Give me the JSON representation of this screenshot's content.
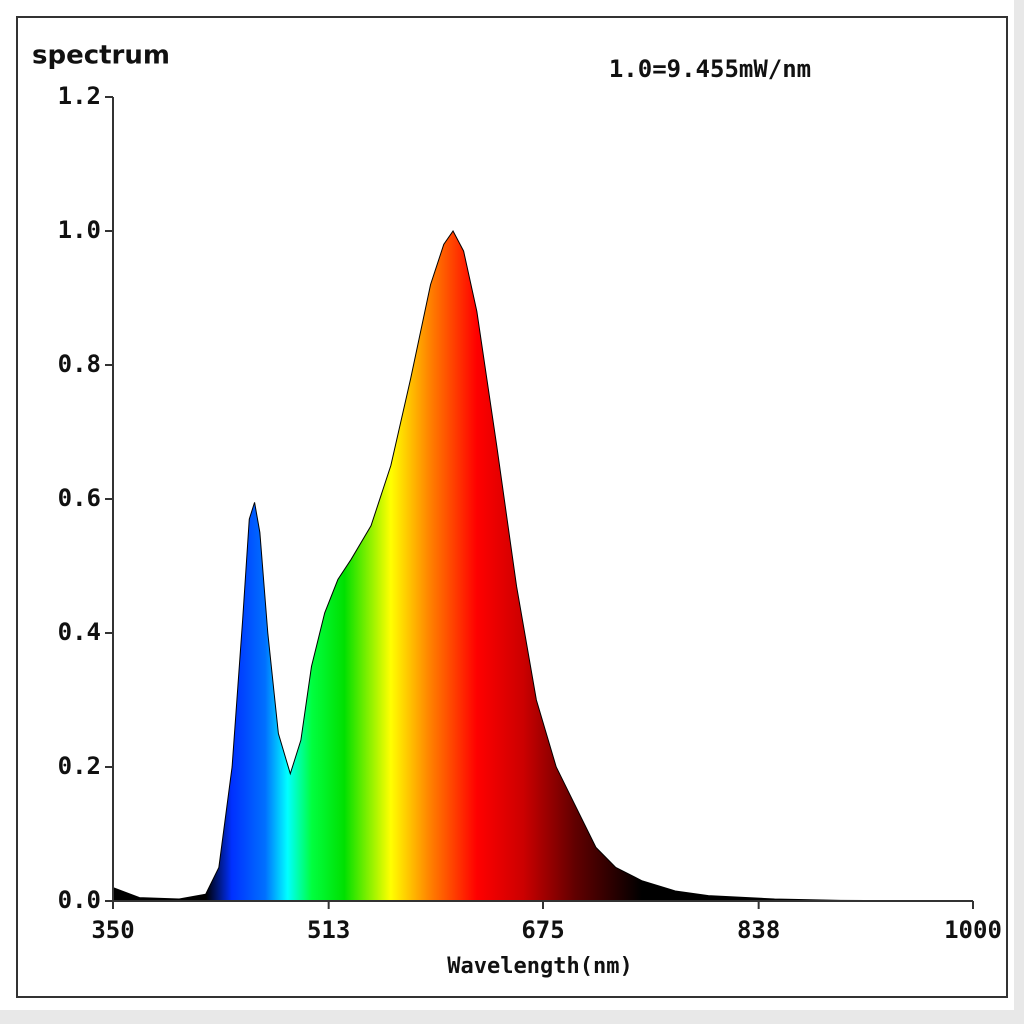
{
  "chart_data": {
    "type": "area",
    "y_label": "spectrum",
    "annotation": "1.0=9.455mW/nm",
    "x_label": "Wavelength(nm)",
    "x": [
      350,
      370,
      400,
      420,
      430,
      440,
      448,
      453,
      457,
      461,
      467,
      475,
      484,
      492,
      500,
      510,
      520,
      530,
      545,
      560,
      575,
      590,
      600,
      607,
      615,
      625,
      640,
      655,
      670,
      685,
      700,
      715,
      730,
      750,
      775,
      800,
      850,
      900,
      1000
    ],
    "values": [
      0.02,
      0.005,
      0.003,
      0.01,
      0.05,
      0.2,
      0.42,
      0.57,
      0.595,
      0.55,
      0.4,
      0.25,
      0.19,
      0.24,
      0.35,
      0.43,
      0.48,
      0.51,
      0.56,
      0.65,
      0.78,
      0.92,
      0.98,
      1.0,
      0.97,
      0.88,
      0.68,
      0.47,
      0.3,
      0.2,
      0.14,
      0.08,
      0.05,
      0.03,
      0.015,
      0.008,
      0.003,
      0.001,
      0.0
    ],
    "xlim": [
      350,
      1000
    ],
    "xticks": [
      350,
      513,
      675,
      838,
      1000
    ],
    "ylim": [
      0,
      1.2
    ],
    "yticks": [
      {
        "value": 0,
        "label": "0.0"
      },
      0.2,
      0.4,
      0.6,
      0.8,
      {
        "value": 1,
        "label": "1.0"
      },
      1.2
    ]
  }
}
